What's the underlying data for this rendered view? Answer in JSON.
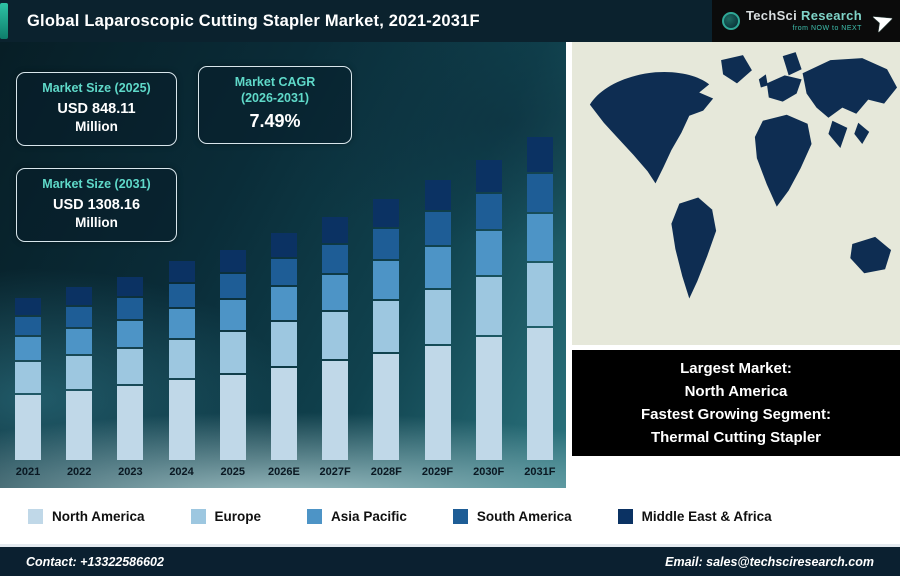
{
  "header": {
    "title": "Global Laparoscopic Cutting Stapler Market, 2021-2031F"
  },
  "logo": {
    "part1": "TechSci",
    "part2": "Research",
    "tagline": "from NOW to NEXT"
  },
  "info_cards": [
    {
      "title_line1": "Market Size (2025)",
      "value": "USD 848.11",
      "unit": "Million"
    },
    {
      "title_line1": "Market CAGR",
      "title_line2": "(2026-2031)",
      "value": "7.49%"
    },
    {
      "title_line1": "Market Size (2031)",
      "value": "USD 1308.16",
      "unit": "Million"
    }
  ],
  "chart_data": {
    "type": "bar",
    "stacked": true,
    "title": "Global Laparoscopic Cutting Stapler Market, 2021-2031F",
    "unit": "USD Million",
    "categories": [
      "2021",
      "2022",
      "2023",
      "2024",
      "2025",
      "2026E",
      "2027F",
      "2028F",
      "2029F",
      "2030F",
      "2031F"
    ],
    "series": [
      {
        "name": "North America",
        "color": "#c0d8e8",
        "values": [
          269,
          288,
          309,
          332,
          356,
          383,
          412,
          442,
          475,
          511,
          549
        ]
      },
      {
        "name": "Europe",
        "color": "#9dc7e0",
        "values": [
          128,
          137,
          147,
          158,
          170,
          182,
          196,
          211,
          226,
          243,
          262
        ]
      },
      {
        "name": "Asia Pacific",
        "color": "#4d94c6",
        "values": [
          96,
          103,
          110,
          119,
          127,
          137,
          147,
          158,
          170,
          183,
          196
        ]
      },
      {
        "name": "South America",
        "color": "#1e5d96",
        "values": [
          77,
          82,
          88,
          95,
          102,
          109,
          118,
          126,
          136,
          146,
          157
        ]
      },
      {
        "name": "Middle East & Africa",
        "color": "#0b3263",
        "values": [
          70,
          75,
          81,
          87,
          93,
          100,
          108,
          116,
          125,
          134,
          144
        ]
      }
    ],
    "totals": [
      640,
      685,
      735,
      791,
      848.11,
      911,
      981,
      1053,
      1132,
      1217,
      1308.16
    ],
    "annotations": [
      "Market Size (2025): USD 848.11 Million",
      "Market CAGR (2026-2031): 7.49%",
      "Market Size (2031): USD 1308.16 Million"
    ],
    "legend_position": "bottom",
    "grid": false
  },
  "map_caption": {
    "line1": "Largest Market:",
    "line2": "North America",
    "line3": "Fastest Growing Segment:",
    "line4": "Thermal Cutting Stapler"
  },
  "footer": {
    "contact": "Contact: +13322586602",
    "email": "Email: sales@techsciresearch.com"
  }
}
